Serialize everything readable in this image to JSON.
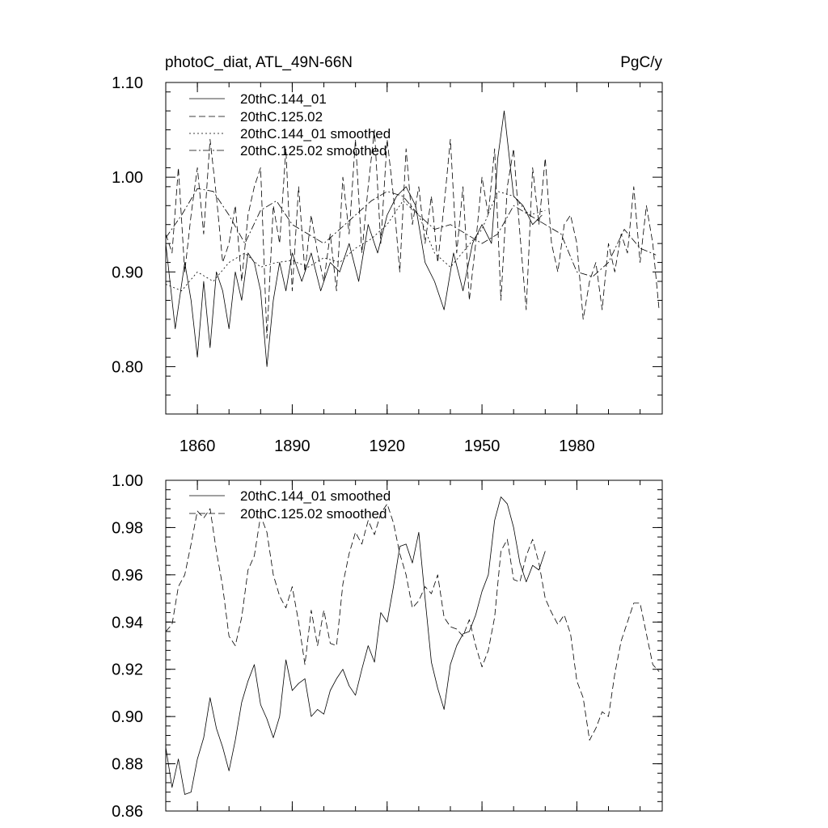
{
  "chart_data": [
    {
      "type": "line",
      "title": "photoC_diat, ATL_49N-66N",
      "units": "PgC/y",
      "xlim": [
        1850,
        2007
      ],
      "ylim": [
        0.75,
        1.1
      ],
      "yticks": [
        0.8,
        0.9,
        1.0,
        1.1
      ],
      "ytick_labels": [
        "0.80",
        "0.90",
        "1.00",
        "1.10"
      ],
      "xticks": [
        1860,
        1890,
        1920,
        1950,
        1980
      ],
      "xtick_labels": [
        "1860",
        "1890",
        "1920",
        "1950",
        "1980"
      ],
      "legend_position": "top-left",
      "series": [
        {
          "name": "20thC.144_01",
          "style": "solid",
          "x": [
            1850,
            1853,
            1856,
            1858,
            1860,
            1862,
            1864,
            1866,
            1868,
            1870,
            1872,
            1874,
            1876,
            1878,
            1880,
            1882,
            1884,
            1886,
            1888,
            1890,
            1893,
            1896,
            1899,
            1902,
            1905,
            1908,
            1911,
            1914,
            1917,
            1920,
            1923,
            1926,
            1929,
            1932,
            1935,
            1938,
            1941,
            1944,
            1947,
            1950,
            1953,
            1955,
            1957,
            1960,
            1963,
            1966,
            1969
          ],
          "y": [
            0.93,
            0.84,
            0.91,
            0.87,
            0.81,
            0.89,
            0.82,
            0.9,
            0.88,
            0.84,
            0.9,
            0.87,
            0.92,
            0.91,
            0.88,
            0.8,
            0.87,
            0.91,
            0.88,
            0.92,
            0.89,
            0.92,
            0.88,
            0.91,
            0.9,
            0.93,
            0.89,
            0.95,
            0.92,
            0.96,
            0.98,
            0.99,
            0.97,
            0.91,
            0.89,
            0.86,
            0.92,
            0.88,
            0.93,
            0.95,
            0.93,
            1.02,
            1.07,
            0.98,
            0.97,
            0.95,
            0.96
          ]
        },
        {
          "name": "20thC.125.02",
          "style": "dashed",
          "x": [
            1850,
            1852,
            1854,
            1856,
            1858,
            1860,
            1862,
            1864,
            1866,
            1868,
            1870,
            1872,
            1874,
            1876,
            1878,
            1880,
            1882,
            1884,
            1886,
            1888,
            1890,
            1892,
            1894,
            1896,
            1898,
            1900,
            1902,
            1904,
            1906,
            1908,
            1910,
            1912,
            1914,
            1916,
            1918,
            1920,
            1922,
            1924,
            1926,
            1928,
            1930,
            1932,
            1934,
            1936,
            1938,
            1940,
            1942,
            1944,
            1946,
            1948,
            1950,
            1952,
            1954,
            1956,
            1958,
            1960,
            1962,
            1964,
            1966,
            1968,
            1970,
            1972,
            1974,
            1976,
            1978,
            1980,
            1982,
            1984,
            1986,
            1988,
            1990,
            1992,
            1994,
            1996,
            1998,
            2000,
            2002,
            2004,
            2006
          ],
          "y": [
            0.94,
            0.92,
            1.01,
            0.9,
            0.96,
            1.01,
            0.94,
            1.04,
            0.98,
            0.91,
            0.93,
            0.97,
            0.89,
            0.96,
            0.99,
            1.01,
            0.83,
            0.97,
            0.93,
            1.03,
            0.88,
            0.99,
            0.9,
            0.96,
            0.92,
            0.89,
            0.94,
            0.88,
            1.0,
            0.94,
            1.04,
            0.92,
            0.99,
            1.05,
            0.93,
            1.04,
            0.98,
            0.9,
            1.03,
            0.95,
            0.99,
            0.93,
            0.98,
            0.91,
            0.97,
            1.04,
            0.92,
            0.99,
            0.87,
            0.93,
            1.0,
            0.96,
            1.03,
            0.87,
            0.99,
            1.03,
            0.94,
            0.86,
            1.01,
            0.95,
            1.02,
            0.93,
            0.9,
            0.95,
            0.96,
            0.93,
            0.85,
            0.89,
            0.91,
            0.86,
            0.93,
            0.9,
            0.94,
            0.92,
            0.99,
            0.91,
            0.97,
            0.93,
            0.86
          ]
        },
        {
          "name": "20thC.144_01 smoothed",
          "style": "dotted",
          "x": [
            1850,
            1855,
            1860,
            1865,
            1870,
            1875,
            1880,
            1885,
            1890,
            1895,
            1900,
            1905,
            1910,
            1915,
            1920,
            1925,
            1930,
            1935,
            1940,
            1945,
            1950,
            1955,
            1960,
            1965,
            1970
          ],
          "y": [
            0.887,
            0.88,
            0.9,
            0.89,
            0.91,
            0.92,
            0.905,
            0.91,
            0.912,
            0.905,
            0.915,
            0.91,
            0.925,
            0.935,
            0.95,
            0.975,
            0.96,
            0.92,
            0.905,
            0.925,
            0.945,
            0.985,
            0.98,
            0.96,
            0.965
          ]
        },
        {
          "name": "20thC.125.02 smoothed",
          "style": "dash-dot",
          "x": [
            1850,
            1855,
            1860,
            1865,
            1870,
            1875,
            1880,
            1885,
            1890,
            1895,
            1900,
            1905,
            1910,
            1915,
            1920,
            1925,
            1930,
            1935,
            1940,
            1945,
            1950,
            1955,
            1960,
            1965,
            1970,
            1975,
            1980,
            1985,
            1990,
            1995,
            2000,
            2005
          ],
          "y": [
            0.936,
            0.96,
            0.988,
            0.985,
            0.96,
            0.93,
            0.965,
            0.975,
            0.95,
            0.94,
            0.93,
            0.945,
            0.96,
            0.975,
            0.985,
            0.98,
            0.96,
            0.945,
            0.95,
            0.94,
            0.93,
            0.94,
            0.97,
            0.96,
            0.95,
            0.94,
            0.9,
            0.895,
            0.91,
            0.945,
            0.925,
            0.918
          ]
        }
      ]
    },
    {
      "type": "line",
      "title": "",
      "xlim": [
        1850,
        2007
      ],
      "ylim": [
        0.86,
        1.0
      ],
      "yticks": [
        0.86,
        0.88,
        0.9,
        0.92,
        0.94,
        0.96,
        0.98,
        1.0
      ],
      "ytick_labels": [
        "0.86",
        "0.88",
        "0.90",
        "0.92",
        "0.94",
        "0.96",
        "0.98",
        "1.00"
      ],
      "xticks": [
        1860,
        1890,
        1920,
        1950,
        1980
      ],
      "legend_position": "top-left",
      "series": [
        {
          "name": "20thC.144_01 smoothed",
          "style": "solid",
          "x": [
            1850,
            1852,
            1854,
            1856,
            1858,
            1860,
            1862,
            1864,
            1866,
            1868,
            1870,
            1872,
            1874,
            1876,
            1878,
            1880,
            1882,
            1884,
            1886,
            1888,
            1890,
            1892,
            1894,
            1896,
            1898,
            1900,
            1902,
            1904,
            1906,
            1908,
            1910,
            1912,
            1914,
            1916,
            1918,
            1920,
            1922,
            1924,
            1926,
            1928,
            1930,
            1932,
            1934,
            1936,
            1938,
            1940,
            1942,
            1944,
            1946,
            1948,
            1950,
            1952,
            1954,
            1956,
            1958,
            1960,
            1962,
            1964,
            1966,
            1968,
            1970
          ],
          "y": [
            0.887,
            0.87,
            0.882,
            0.867,
            0.868,
            0.882,
            0.891,
            0.908,
            0.895,
            0.887,
            0.877,
            0.89,
            0.906,
            0.915,
            0.922,
            0.905,
            0.899,
            0.891,
            0.9,
            0.924,
            0.911,
            0.914,
            0.916,
            0.9,
            0.903,
            0.901,
            0.911,
            0.916,
            0.92,
            0.913,
            0.909,
            0.92,
            0.93,
            0.923,
            0.944,
            0.94,
            0.955,
            0.972,
            0.973,
            0.965,
            0.978,
            0.95,
            0.923,
            0.912,
            0.903,
            0.922,
            0.93,
            0.935,
            0.936,
            0.943,
            0.953,
            0.96,
            0.983,
            0.993,
            0.99,
            0.98,
            0.965,
            0.957,
            0.964,
            0.962,
            0.97
          ]
        },
        {
          "name": "20thC.125.02 smoothed",
          "style": "dashed",
          "x": [
            1850,
            1852,
            1854,
            1856,
            1858,
            1860,
            1862,
            1864,
            1866,
            1868,
            1870,
            1872,
            1874,
            1876,
            1878,
            1880,
            1882,
            1884,
            1886,
            1888,
            1890,
            1892,
            1894,
            1896,
            1898,
            1900,
            1902,
            1904,
            1906,
            1908,
            1910,
            1912,
            1914,
            1916,
            1918,
            1920,
            1922,
            1924,
            1926,
            1928,
            1930,
            1932,
            1934,
            1936,
            1938,
            1940,
            1942,
            1944,
            1946,
            1948,
            1950,
            1952,
            1954,
            1956,
            1958,
            1960,
            1962,
            1964,
            1966,
            1968,
            1970,
            1972,
            1974,
            1976,
            1978,
            1980,
            1982,
            1984,
            1986,
            1988,
            1990,
            1992,
            1994,
            1996,
            1998,
            2000,
            2002,
            2004,
            2006
          ],
          "y": [
            0.936,
            0.939,
            0.955,
            0.96,
            0.973,
            0.987,
            0.984,
            0.988,
            0.97,
            0.955,
            0.934,
            0.93,
            0.942,
            0.962,
            0.968,
            0.985,
            0.978,
            0.96,
            0.951,
            0.946,
            0.955,
            0.94,
            0.922,
            0.945,
            0.93,
            0.945,
            0.931,
            0.93,
            0.956,
            0.969,
            0.978,
            0.973,
            0.983,
            0.977,
            0.986,
            0.99,
            0.982,
            0.969,
            0.96,
            0.946,
            0.949,
            0.955,
            0.952,
            0.96,
            0.942,
            0.938,
            0.937,
            0.934,
            0.941,
            0.93,
            0.921,
            0.928,
            0.942,
            0.97,
            0.975,
            0.958,
            0.957,
            0.968,
            0.975,
            0.965,
            0.95,
            0.944,
            0.939,
            0.943,
            0.935,
            0.915,
            0.908,
            0.89,
            0.895,
            0.902,
            0.9,
            0.918,
            0.932,
            0.94,
            0.948,
            0.948,
            0.935,
            0.922,
            0.919
          ]
        }
      ]
    }
  ]
}
